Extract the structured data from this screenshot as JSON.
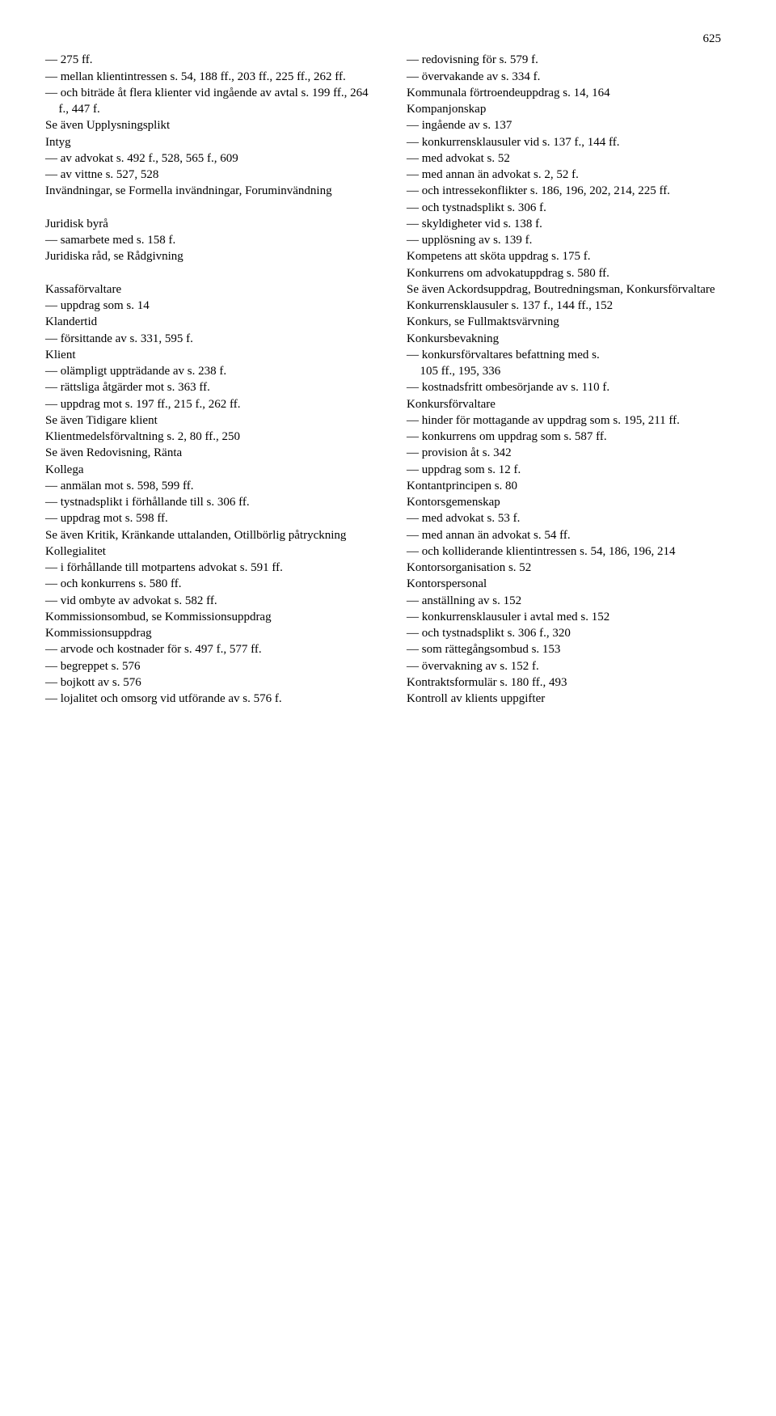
{
  "pageNumber": "625",
  "left": [
    {
      "t": "sub",
      "v": "275 ff."
    },
    {
      "t": "sub",
      "v": "mellan klientintressen s. 54, 188 ff., 203 ff., 225 ff., 262 ff."
    },
    {
      "t": "sub",
      "v": "och biträde åt flera klienter vid ingående av avtal s. 199 ff., 264 f., 447 f."
    },
    {
      "t": "head",
      "v": "Se även Upplysningsplikt"
    },
    {
      "t": "head",
      "v": "Intyg"
    },
    {
      "t": "sub",
      "v": "av advokat s. 492 f., 528, 565 f., 609"
    },
    {
      "t": "sub",
      "v": "av vittne s. 527, 528"
    },
    {
      "t": "head",
      "v": "Invändningar, se Formella invändningar, Foruminvändning"
    },
    {
      "t": "blank",
      "v": ""
    },
    {
      "t": "head",
      "v": "Juridisk byrå"
    },
    {
      "t": "sub",
      "v": "samarbete med s. 158 f."
    },
    {
      "t": "head",
      "v": "Juridiska råd, se Rådgivning"
    },
    {
      "t": "blank",
      "v": ""
    },
    {
      "t": "head",
      "v": "Kassaförvaltare"
    },
    {
      "t": "sub",
      "v": "uppdrag som s. 14"
    },
    {
      "t": "head",
      "v": "Klandertid"
    },
    {
      "t": "sub",
      "v": "försittande av s. 331, 595 f."
    },
    {
      "t": "head",
      "v": "Klient"
    },
    {
      "t": "sub",
      "v": "olämpligt uppträdande av s. 238 f."
    },
    {
      "t": "sub",
      "v": "rättsliga åtgärder mot s. 363 ff."
    },
    {
      "t": "sub",
      "v": "uppdrag mot s. 197 ff., 215 f., 262 ff."
    },
    {
      "t": "head",
      "v": "Se även Tidigare klient"
    },
    {
      "t": "head",
      "v": "Klientmedelsförvaltning s. 2, 80 ff., 250"
    },
    {
      "t": "head",
      "v": "Se även Redovisning, Ränta"
    },
    {
      "t": "head",
      "v": "Kollega"
    },
    {
      "t": "sub",
      "v": "anmälan mot s. 598, 599 ff."
    },
    {
      "t": "sub",
      "v": "tystnadsplikt i förhållande till s. 306 ff."
    },
    {
      "t": "sub",
      "v": "uppdrag mot s. 598 ff."
    },
    {
      "t": "head",
      "v": "Se även Kritik, Kränkande uttalanden, Otillbörlig påtryckning"
    },
    {
      "t": "head",
      "v": "Kollegialitet"
    },
    {
      "t": "sub",
      "v": "i förhållande till motpartens advokat s. 591 ff."
    },
    {
      "t": "sub",
      "v": "och konkurrens s. 580 ff."
    },
    {
      "t": "sub",
      "v": "vid ombyte av advokat s. 582 ff."
    },
    {
      "t": "head",
      "v": "Kommissionsombud, se Kommissionsuppdrag"
    },
    {
      "t": "head",
      "v": "Kommissionsuppdrag"
    },
    {
      "t": "sub",
      "v": "arvode och kostnader för s. 497 f., 577 ff."
    },
    {
      "t": "sub",
      "v": "begreppet s. 576"
    },
    {
      "t": "sub",
      "v": "bojkott av s. 576"
    },
    {
      "t": "sub",
      "v": "lojalitet och omsorg vid utförande av s. 576 f."
    }
  ],
  "right": [
    {
      "t": "sub",
      "v": "redovisning för s. 579 f."
    },
    {
      "t": "sub",
      "v": "övervakande av s. 334 f."
    },
    {
      "t": "head",
      "v": "Kommunala förtroendeuppdrag s. 14, 164"
    },
    {
      "t": "head",
      "v": "Kompanjonskap"
    },
    {
      "t": "sub",
      "v": "ingående av s. 137"
    },
    {
      "t": "sub",
      "v": "konkurrensklausuler vid s. 137 f., 144 ff."
    },
    {
      "t": "sub",
      "v": "med advokat s. 52"
    },
    {
      "t": "sub",
      "v": "med annan än advokat s. 2, 52 f."
    },
    {
      "t": "sub",
      "v": "och intressekonflikter s. 186, 196, 202, 214, 225 ff."
    },
    {
      "t": "sub",
      "v": "och tystnadsplikt s. 306 f."
    },
    {
      "t": "sub",
      "v": "skyldigheter vid s. 138 f."
    },
    {
      "t": "sub",
      "v": "upplösning av s. 139 f."
    },
    {
      "t": "head",
      "v": "Kompetens att sköta uppdrag s. 175 f."
    },
    {
      "t": "head",
      "v": "Konkurrens om advokatuppdrag s. 580 ff."
    },
    {
      "t": "head",
      "v": "Se även Ackordsuppdrag, Boutredningsman, Konkursförvaltare"
    },
    {
      "t": "head",
      "v": "Konkurrensklausuler s. 137 f., 144 ff., 152"
    },
    {
      "t": "head",
      "v": "Konkurs, se Fullmaktsvärvning"
    },
    {
      "t": "head",
      "v": "Konkursbevakning"
    },
    {
      "t": "sub",
      "v": "konkursförvaltares befattning med s."
    },
    {
      "t": "cont",
      "v": "105 ff., 195, 336"
    },
    {
      "t": "sub",
      "v": "kostnadsfritt ombesörjande av s. 110 f."
    },
    {
      "t": "head",
      "v": "Konkursförvaltare"
    },
    {
      "t": "sub",
      "v": "hinder för mottagande av uppdrag som s. 195, 211 ff."
    },
    {
      "t": "sub",
      "v": "konkurrens om uppdrag som s. 587 ff."
    },
    {
      "t": "sub",
      "v": "provision åt s. 342"
    },
    {
      "t": "sub",
      "v": "uppdrag som s. 12 f."
    },
    {
      "t": "head",
      "v": "Kontantprincipen s. 80"
    },
    {
      "t": "head",
      "v": "Kontorsgemenskap"
    },
    {
      "t": "sub",
      "v": "med advokat s. 53 f."
    },
    {
      "t": "sub",
      "v": "med annan än advokat s. 54 ff."
    },
    {
      "t": "sub",
      "v": "och kolliderande klientintressen s. 54, 186, 196, 214"
    },
    {
      "t": "head",
      "v": "Kontorsorganisation s. 52"
    },
    {
      "t": "head",
      "v": "Kontorspersonal"
    },
    {
      "t": "sub",
      "v": "anställning av s. 152"
    },
    {
      "t": "sub",
      "v": "konkurrensklausuler i avtal med s. 152"
    },
    {
      "t": "sub",
      "v": "och tystnadsplikt s. 306 f., 320"
    },
    {
      "t": "sub",
      "v": "som rättegångsombud s. 153"
    },
    {
      "t": "sub",
      "v": "övervakning av s. 152 f."
    },
    {
      "t": "head",
      "v": "Kontraktsformulär s. 180 ff., 493"
    },
    {
      "t": "head",
      "v": "Kontroll av klients uppgifter"
    }
  ]
}
